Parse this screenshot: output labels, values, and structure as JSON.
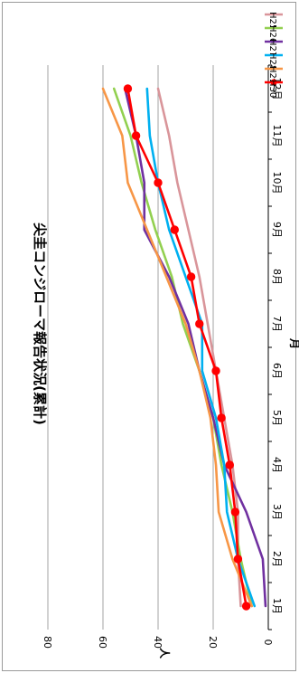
{
  "chart_data": {
    "type": "line",
    "title": "尖圭コンジローマ報告状況(累計)",
    "xlabel": "月",
    "ylabel": "人",
    "categories": [
      "1月",
      "2月",
      "3月",
      "4月",
      "5月",
      "6月",
      "7月",
      "8月",
      "9月",
      "10月",
      "11月",
      "12月"
    ],
    "ylim": [
      0,
      80
    ],
    "yticks": [
      "0",
      "20",
      "40",
      "60",
      "80"
    ],
    "grid": true,
    "legend_position": "top-right",
    "series": [
      {
        "name": "H25",
        "color": "#d9959a",
        "marker": false,
        "values": [
          10,
          11,
          11,
          13,
          16,
          19,
          22,
          25,
          29,
          33,
          36,
          40
        ]
      },
      {
        "name": "H26",
        "color": "#92d050",
        "marker": false,
        "values": [
          6,
          10,
          13,
          17,
          20,
          25,
          31,
          35,
          41,
          46,
          50,
          56
        ]
      },
      {
        "name": "H27",
        "color": "#7030a0",
        "marker": false,
        "values": [
          1,
          2,
          8,
          16,
          20,
          25,
          29,
          36,
          45,
          45,
          48,
          52
        ]
      },
      {
        "name": "H28",
        "color": "#00b0f0",
        "marker": false,
        "values": [
          5,
          11,
          15,
          16,
          19,
          24,
          24,
          30,
          36,
          40,
          43,
          44
        ]
      },
      {
        "name": "H29",
        "color": "#f79646",
        "marker": false,
        "values": [
          6,
          13,
          18,
          19,
          21,
          25,
          30,
          37,
          44,
          51,
          53,
          60
        ]
      },
      {
        "name": "H30",
        "color": "#ff0000",
        "marker": true,
        "values": [
          8,
          11,
          12,
          14,
          17,
          19,
          25,
          28,
          34,
          40,
          48,
          51
        ]
      }
    ]
  }
}
